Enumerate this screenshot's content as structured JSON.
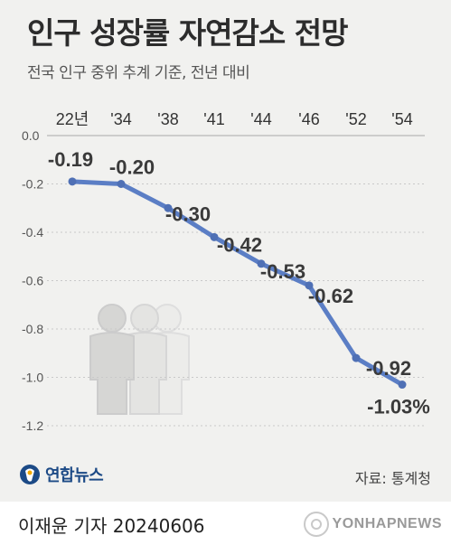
{
  "header": {
    "title": "인구 성장률 자연감소 전망",
    "subtitle": "전국 인구 중위 추계 기준, 전년 대비"
  },
  "footer": {
    "logo_label": "연합뉴스",
    "source": "자료: 통계청",
    "author": "이재윤 기자  20240606",
    "agency": "YONHAPNEWS"
  },
  "colors": {
    "line": "#5b7ec5",
    "marker": "#4f70b5",
    "background": "#f1f1ef",
    "figure": "#dcdcdc"
  },
  "chart_data": {
    "type": "line",
    "title": "인구 성장률 자연감소 전망",
    "subtitle": "전국 인구 중위 추계 기준, 전년 대비",
    "categories": [
      "22년",
      "'34",
      "'38",
      "'41",
      "'44",
      "'46",
      "'52",
      "'54"
    ],
    "series": [
      {
        "values": [
          -0.19,
          -0.2,
          -0.3,
          -0.42,
          -0.53,
          -0.62,
          -0.92,
          -1.03
        ]
      }
    ],
    "data_labels": [
      "-0.19",
      "-0.20",
      "-0.30",
      "-0.42",
      "-0.53",
      "-0.62",
      "-0.92",
      "-1.03%"
    ],
    "y_ticks": [
      "0.0",
      "-0.2",
      "-0.4",
      "-0.6",
      "-0.8",
      "-1.0",
      "-1.2"
    ],
    "y_tick_values": [
      0.0,
      -0.2,
      -0.4,
      -0.6,
      -0.8,
      -1.0,
      -1.2
    ],
    "ylim": [
      -1.2,
      0.0
    ],
    "grid": "horizontal dashed",
    "xlabel": "",
    "ylabel": ""
  }
}
